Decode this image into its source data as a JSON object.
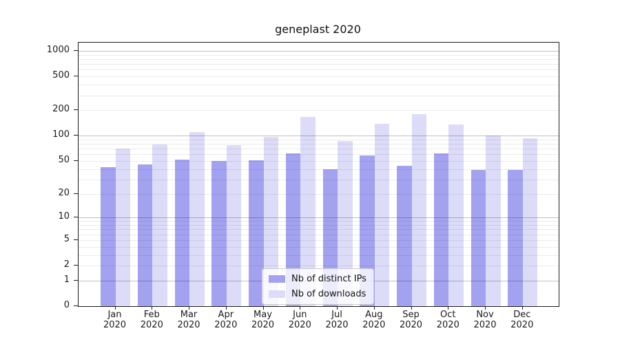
{
  "chart_data": {
    "type": "bar",
    "title": "geneplast 2020",
    "categories": [
      "Jan",
      "Feb",
      "Mar",
      "Apr",
      "May",
      "Jun",
      "Jul",
      "Aug",
      "Sep",
      "Oct",
      "Nov",
      "Dec"
    ],
    "year_label": "2020",
    "series": [
      {
        "name": "Nb of distinct IPs",
        "color": "#a2a2f0",
        "values": [
          42,
          45,
          52,
          50,
          51,
          62,
          40,
          58,
          44,
          61,
          39,
          39
        ]
      },
      {
        "name": "Nb of downloads",
        "color": "#dcdcf8",
        "values": [
          70,
          78,
          110,
          77,
          97,
          168,
          86,
          138,
          180,
          136,
          100,
          93
        ]
      }
    ],
    "yscale": "log10(1+x)",
    "yticks": [
      0,
      1,
      2,
      5,
      10,
      20,
      50,
      100,
      200,
      500,
      1000
    ],
    "ylim": [
      0,
      1250
    ],
    "grid": true,
    "legend_position": "inside-bottom-center"
  }
}
